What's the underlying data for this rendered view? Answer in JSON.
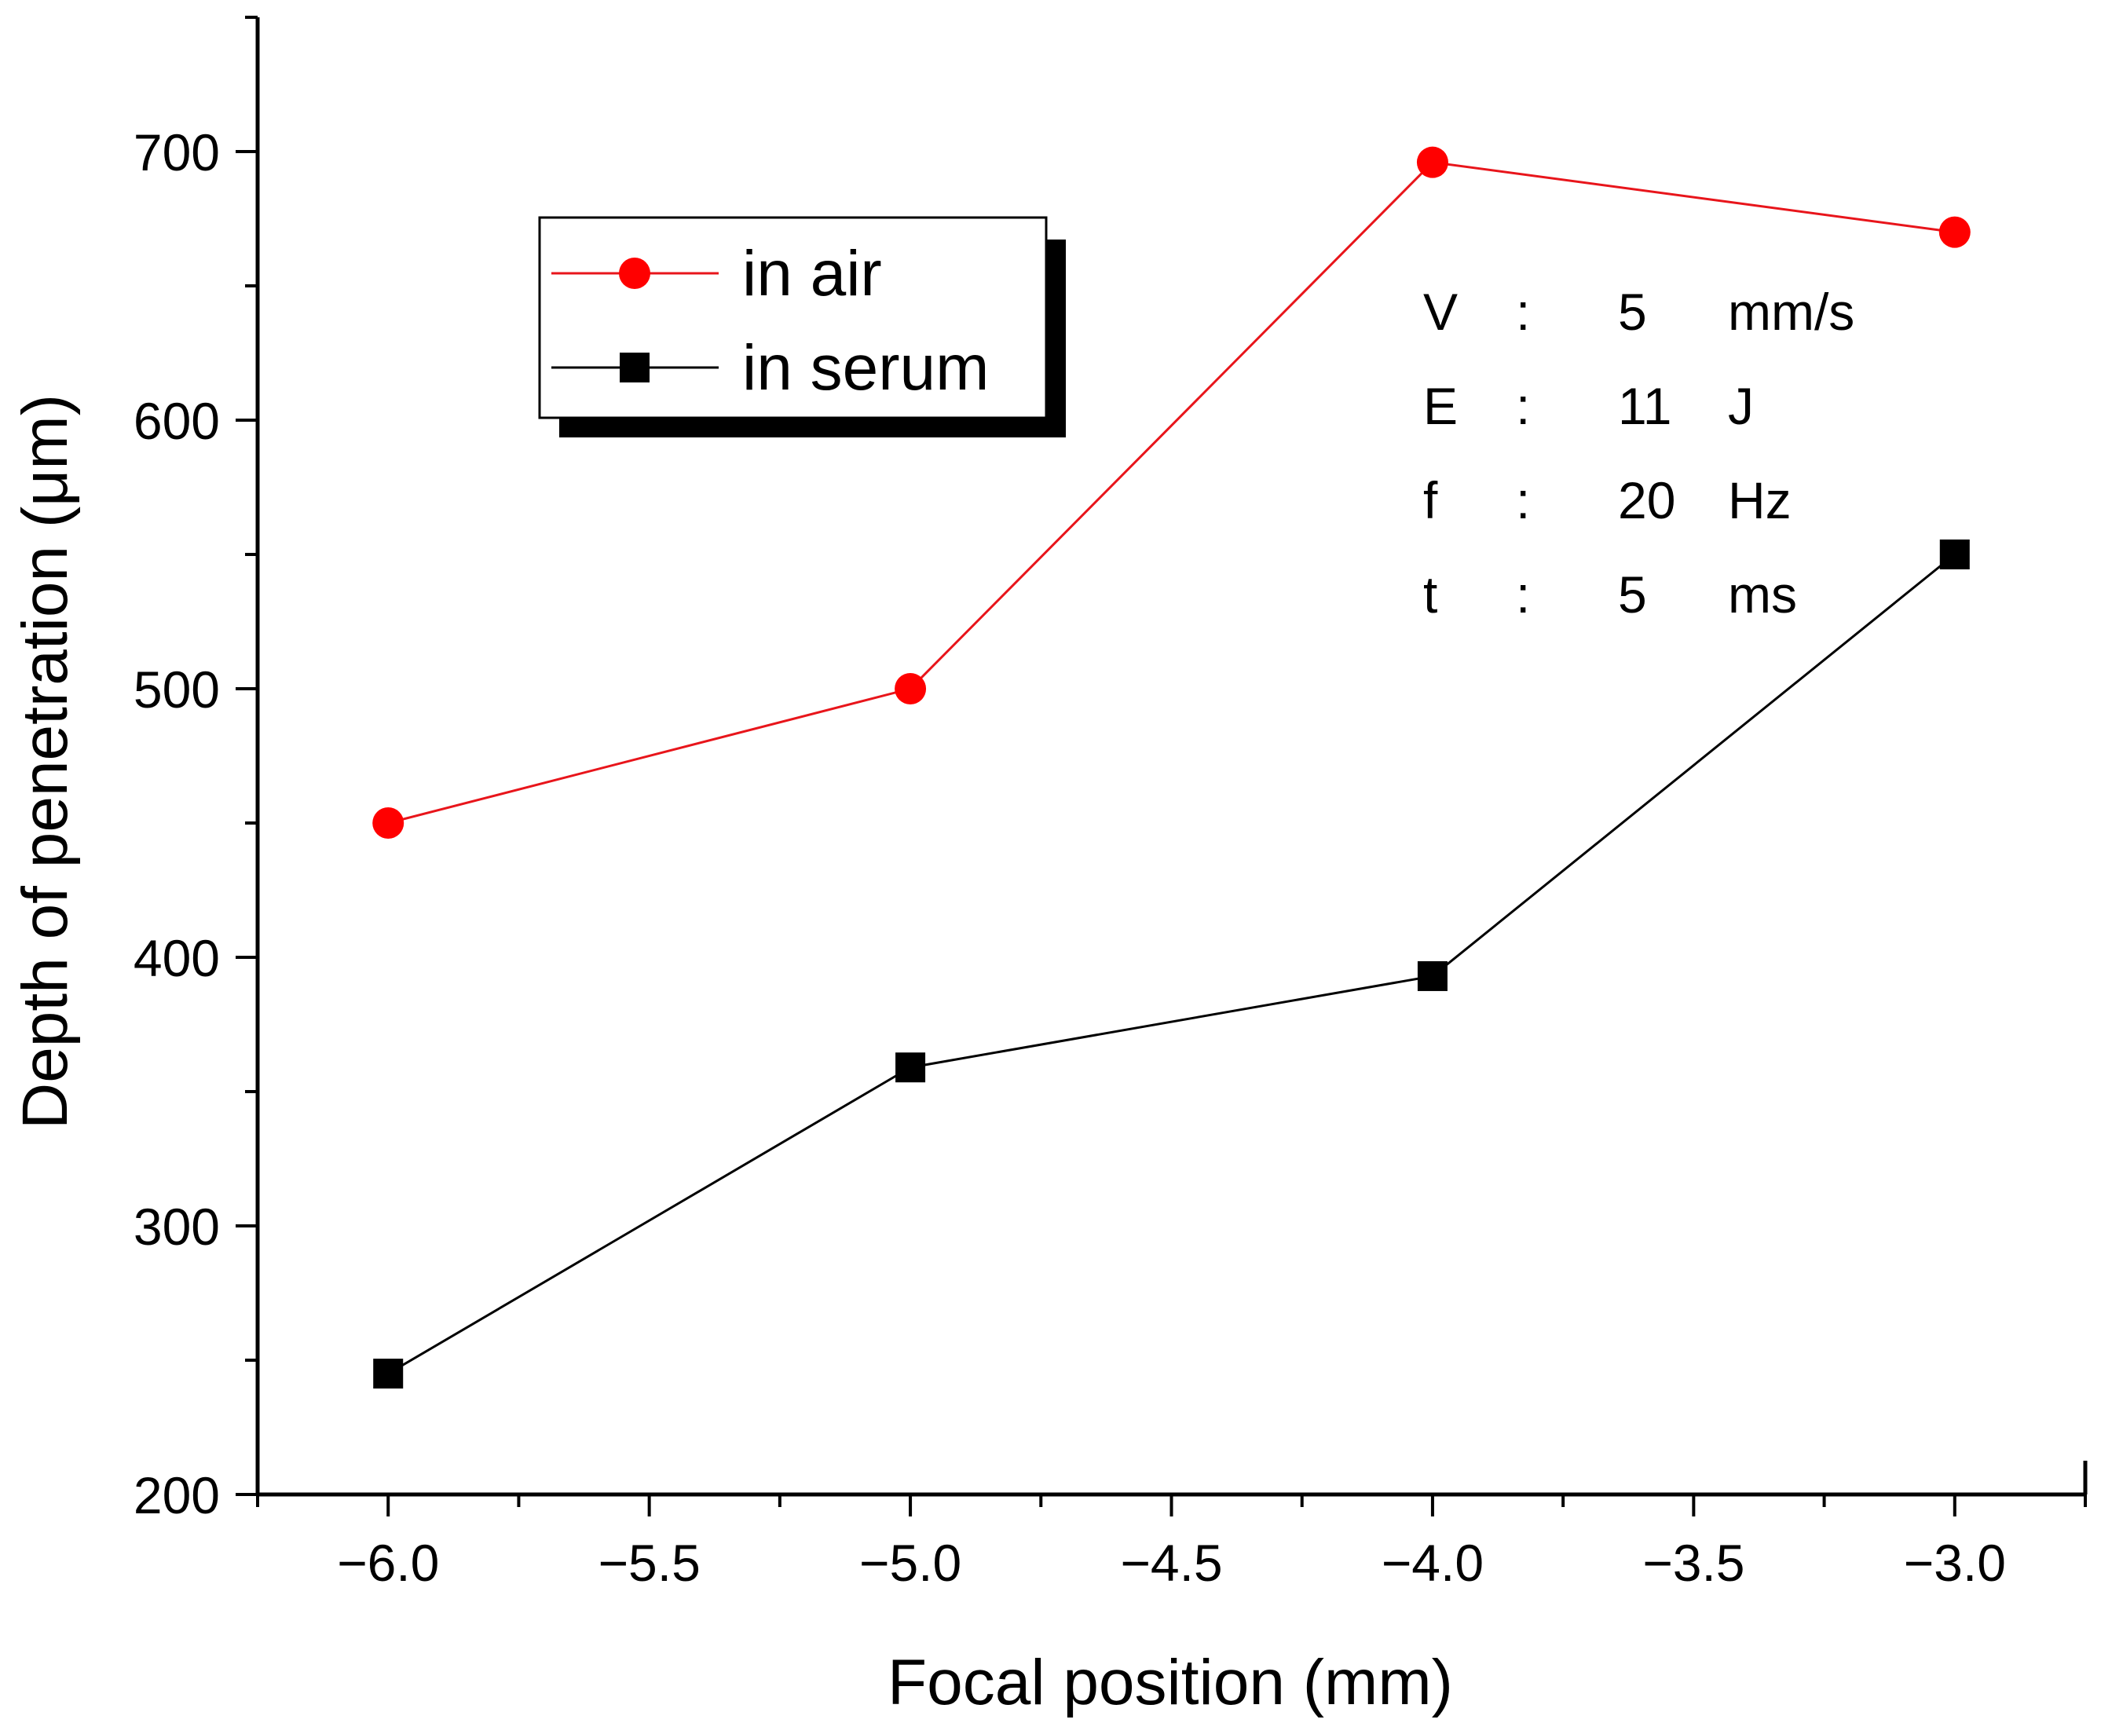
{
  "chart_data": {
    "type": "line",
    "title": "",
    "xlabel": "Focal position (mm)",
    "ylabel": "Depth of penetration (μm)",
    "xlim": [
      -6.25,
      -2.75
    ],
    "ylim": [
      200,
      750
    ],
    "x_ticks": [
      -6.0,
      -5.5,
      -5.0,
      -4.5,
      -4.0,
      -3.5,
      -3.0
    ],
    "x_tick_labels": [
      "−6.0",
      "−5.5",
      "−5.0",
      "−4.5",
      "−4.0",
      "−3.5",
      "−3.0"
    ],
    "y_ticks": [
      200,
      300,
      400,
      500,
      600,
      700
    ],
    "y_tick_labels": [
      "200",
      "300",
      "400",
      "500",
      "600",
      "700"
    ],
    "x": [
      -6.0,
      -5.0,
      -4.0,
      -3.0
    ],
    "series": [
      {
        "name": "in air",
        "marker": "circle",
        "color": "#ff0000",
        "line_color": "#e8151b",
        "values": [
          450,
          500,
          696,
          670
        ]
      },
      {
        "name": "in serum",
        "marker": "square",
        "color": "#000000",
        "line_color": "#000000",
        "values": [
          245,
          359,
          393,
          550
        ]
      }
    ],
    "legend": {
      "position": "top-left"
    },
    "parameters": [
      {
        "symbol": "V",
        "sep": ":",
        "value": "5",
        "unit": "mm/s"
      },
      {
        "symbol": "E",
        "sep": ":",
        "value": "11",
        "unit": "J"
      },
      {
        "symbol": "f",
        "sep": ":",
        "value": "20",
        "unit": "Hz"
      },
      {
        "symbol": "t",
        "sep": ":",
        "value": "5",
        "unit": "ms"
      }
    ]
  }
}
